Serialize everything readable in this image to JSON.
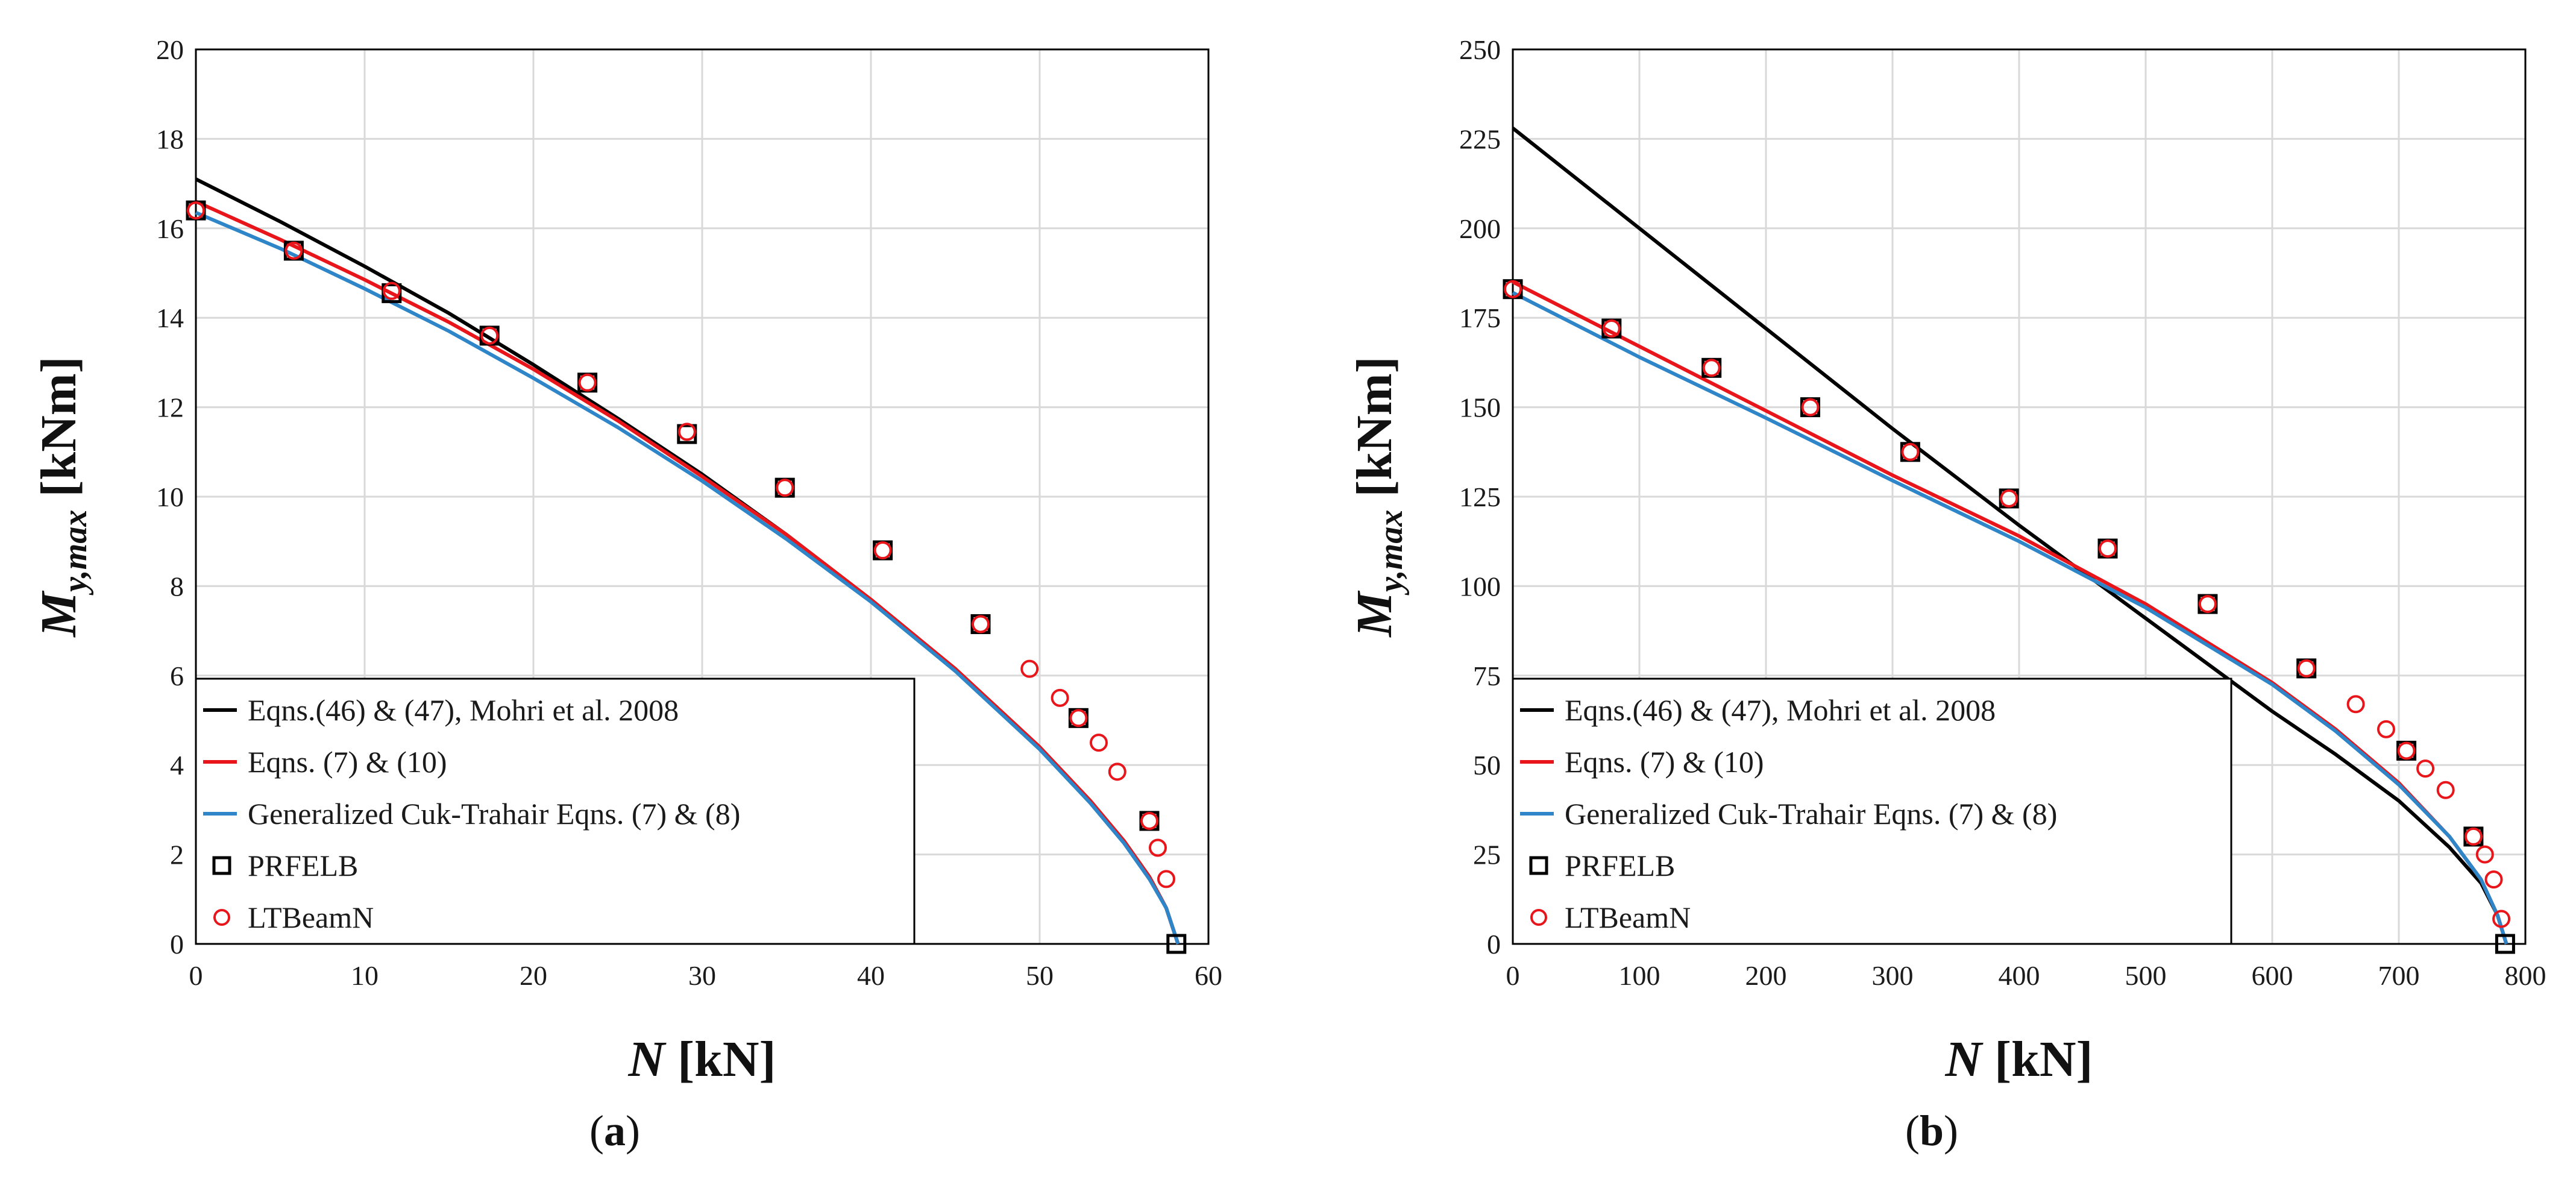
{
  "chart_data": [
    {
      "type": "line",
      "panel_label": "a",
      "xlabel": "N [kN]",
      "ylabel": "My,max [kNm]",
      "xlim": [
        0,
        60
      ],
      "ylim": [
        0,
        20
      ],
      "x_ticks": [
        "0",
        "10",
        "20",
        "30",
        "40",
        "50",
        "60"
      ],
      "y_ticks": [
        "0",
        "2",
        "4",
        "6",
        "8",
        "10",
        "12",
        "14",
        "16",
        "18",
        "20"
      ],
      "grid": true,
      "legend_position": "bottom-left",
      "series": [
        {
          "name": "Eqns.(46) & (47), Mohri et al. 2008",
          "kind": "line",
          "color": "#000000",
          "x": [
            0,
            5,
            10,
            15,
            20,
            25,
            30,
            35,
            40,
            45,
            50,
            53,
            55,
            56.5,
            57.5,
            58.2
          ],
          "y": [
            17.1,
            16.15,
            15.15,
            14.1,
            12.95,
            11.75,
            10.5,
            9.15,
            7.7,
            6.15,
            4.4,
            3.2,
            2.3,
            1.5,
            0.8,
            0
          ]
        },
        {
          "name": "Eqns. (7) & (10)",
          "kind": "line",
          "color": "#e8151b",
          "x": [
            0,
            5,
            10,
            15,
            20,
            25,
            30,
            35,
            40,
            45,
            50,
            53,
            55,
            56.5,
            57.5,
            58.2
          ],
          "y": [
            16.6,
            15.75,
            14.85,
            13.9,
            12.85,
            11.7,
            10.45,
            9.15,
            7.7,
            6.15,
            4.4,
            3.2,
            2.3,
            1.5,
            0.8,
            0
          ]
        },
        {
          "name": "Generalized Cuk-Trahair Eqns. (7) & (8)",
          "kind": "line",
          "color": "#2e86c8",
          "x": [
            0,
            5,
            10,
            15,
            20,
            25,
            30,
            35,
            40,
            45,
            50,
            53,
            55,
            56.5,
            57.5,
            58.2
          ],
          "y": [
            16.35,
            15.55,
            14.65,
            13.7,
            12.65,
            11.55,
            10.35,
            9.05,
            7.65,
            6.1,
            4.35,
            3.15,
            2.25,
            1.45,
            0.8,
            0
          ]
        },
        {
          "name": "PRFELB",
          "kind": "square",
          "color": "#000000",
          "x": [
            0,
            5.8,
            11.6,
            17.4,
            23.2,
            29.1,
            34.9,
            40.7,
            46.5,
            52.3,
            56.5,
            58.1
          ],
          "y": [
            16.4,
            15.5,
            14.55,
            13.6,
            12.55,
            11.4,
            10.2,
            8.8,
            7.15,
            5.05,
            2.75,
            0
          ]
        },
        {
          "name": "LTBeamN",
          "kind": "circle",
          "color": "#e8151b",
          "x": [
            0,
            5.8,
            11.6,
            17.4,
            23.2,
            29.1,
            34.9,
            40.7,
            46.5,
            49.4,
            51.2,
            52.3,
            53.5,
            54.6,
            56.5,
            57.0,
            57.5
          ],
          "y": [
            16.4,
            15.5,
            14.6,
            13.6,
            12.55,
            11.45,
            10.2,
            8.8,
            7.15,
            6.15,
            5.5,
            5.05,
            4.5,
            3.85,
            2.75,
            2.15,
            1.45
          ]
        }
      ]
    },
    {
      "type": "line",
      "panel_label": "b",
      "xlabel": "N [kN]",
      "ylabel": "My,max [kNm]",
      "xlim": [
        0,
        800
      ],
      "ylim": [
        0,
        250
      ],
      "x_ticks": [
        "0",
        "100",
        "200",
        "300",
        "400",
        "500",
        "600",
        "700",
        "800"
      ],
      "y_ticks": [
        "0",
        "25",
        "50",
        "75",
        "100",
        "125",
        "150",
        "175",
        "200",
        "225",
        "250"
      ],
      "grid": true,
      "legend_position": "bottom-left",
      "series": [
        {
          "name": "Eqns.(46) & (47), Mohri et al. 2008",
          "kind": "line",
          "color": "#000000",
          "x": [
            0,
            100,
            200,
            300,
            400,
            500,
            600,
            650,
            700,
            740,
            765,
            778,
            785
          ],
          "y": [
            228,
            200,
            172,
            144,
            117,
            91,
            65,
            53,
            40,
            27,
            17,
            8,
            0
          ]
        },
        {
          "name": "Eqns. (7) & (10)",
          "kind": "line",
          "color": "#e8151b",
          "x": [
            0,
            100,
            200,
            300,
            400,
            500,
            600,
            650,
            700,
            740,
            765,
            778,
            785
          ],
          "y": [
            185,
            167,
            149,
            131,
            114,
            95,
            73,
            60,
            45,
            30,
            18,
            8,
            0
          ]
        },
        {
          "name": "Generalized Cuk-Trahair Eqns. (7) & (8)",
          "kind": "line",
          "color": "#2e86c8",
          "x": [
            0,
            100,
            200,
            300,
            400,
            500,
            600,
            650,
            700,
            740,
            765,
            778,
            785
          ],
          "y": [
            182,
            164,
            147,
            129.5,
            112.5,
            94,
            72.5,
            59.5,
            44.5,
            30,
            18,
            8,
            0
          ]
        },
        {
          "name": "PRFELB",
          "kind": "square",
          "color": "#000000",
          "x": [
            0,
            78,
            157,
            235,
            314,
            392,
            470,
            549,
            627,
            706,
            759,
            784
          ],
          "y": [
            183,
            172,
            161,
            150,
            137.5,
            124.5,
            110.5,
            95,
            77,
            54,
            30,
            0
          ]
        },
        {
          "name": "LTBeamN",
          "kind": "circle",
          "color": "#e8151b",
          "x": [
            0,
            78,
            157,
            235,
            314,
            392,
            470,
            549,
            627,
            666,
            690,
            706,
            721,
            737,
            759,
            768,
            775,
            781
          ],
          "y": [
            183,
            172,
            161,
            150,
            137.5,
            124.5,
            110.5,
            95,
            77,
            67,
            60,
            54,
            49,
            43,
            30,
            25,
            18,
            7
          ]
        }
      ]
    }
  ]
}
